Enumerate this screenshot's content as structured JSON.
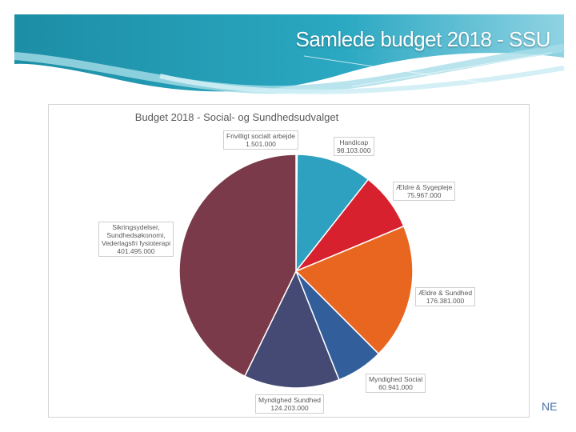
{
  "slide": {
    "title": "Samlede budget 2018 - SSU",
    "corner_text": "NE"
  },
  "chart_data": {
    "type": "pie",
    "title": "Budget 2018 - Social- og Sundhedsudvalget",
    "slices": [
      {
        "name": "Frivilligt socialt arbejde",
        "value_label": "1.501.000",
        "value": 1501000,
        "color": "#7b3a49"
      },
      {
        "name": "Handicap",
        "value_label": "98.103.000",
        "value": 98103000,
        "color": "#2ea1c1"
      },
      {
        "name": "Ældre & Sygepleje",
        "value_label": "75.967.000",
        "value": 75967000,
        "color": "#d8212e"
      },
      {
        "name": "Ældre & Sundhed",
        "value_label": "176.381.000",
        "value": 176381000,
        "color": "#e8661f"
      },
      {
        "name": "Myndighed Social",
        "value_label": "60.941.000",
        "value": 60941000,
        "color": "#325f9c"
      },
      {
        "name": "Myndighed Sundhed",
        "value_label": "124.203.000",
        "value": 124203000,
        "color": "#454a74"
      },
      {
        "name": "Sikringsydelser, Sundhedsøkonomi, Vederlagsfri fysioterapi",
        "name_lines": [
          "Sikringsydelser,",
          "Sundhedsøkonomi,",
          "Vederlagsfri fysioterapi"
        ],
        "value_label": "401.495.000",
        "value": 401495000,
        "color": "#7b3a49"
      }
    ]
  }
}
